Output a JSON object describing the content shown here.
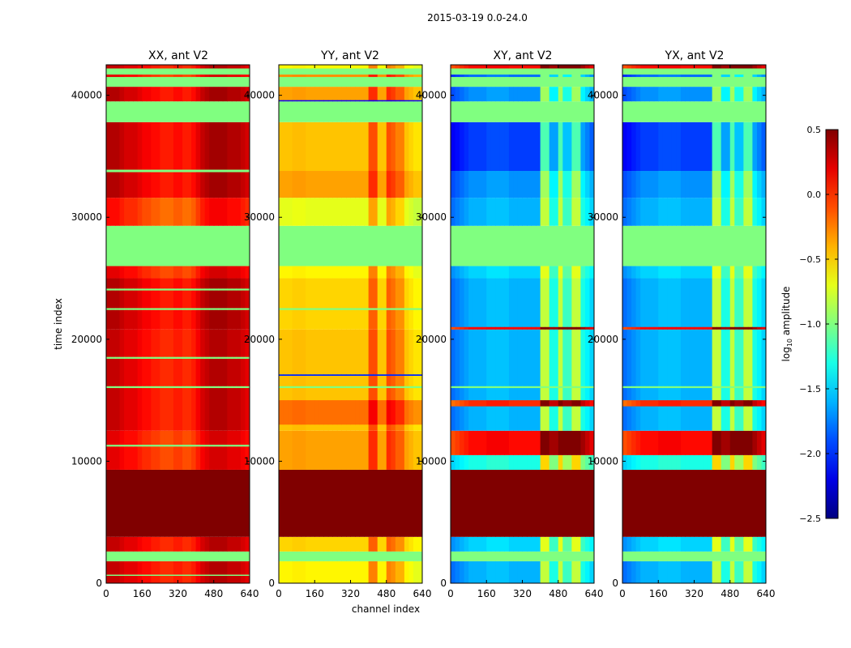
{
  "chart_data": {
    "type": "heatmap",
    "suptitle": "2015-03-19 0.0-24.0",
    "xlabel": "channel index",
    "ylabel": "time index",
    "xlim": [
      0,
      640
    ],
    "ylim": [
      0,
      42500
    ],
    "xticks": [
      0,
      160,
      320,
      480,
      640
    ],
    "yticks": [
      0,
      10000,
      20000,
      30000,
      40000
    ],
    "channels_per_column": 20,
    "colorbar": {
      "label_main": "log",
      "label_sub": "10",
      "label_rest": " amplitude",
      "colormap": "jet",
      "range": [
        -2.5,
        0.5
      ],
      "ticks": [
        "0.5",
        "0.0",
        "−0.5",
        "−1.0",
        "−1.5",
        "−2.0",
        "−2.5"
      ],
      "tick_values": [
        0.5,
        0.0,
        -0.5,
        -1.0,
        -1.5,
        -2.0,
        -2.5
      ]
    },
    "panels": [
      {
        "title": "XX, ant V2",
        "profile": [
          0.1,
          0.1,
          0.1,
          0.05,
          0,
          0,
          0,
          -0.05,
          -0.1,
          -0.1,
          -0.15,
          -0.15,
          -0.2,
          -0.2,
          -0.2,
          -0.15,
          -0.15,
          -0.2,
          -0.2,
          -0.15,
          -0.05,
          0.05,
          0.1,
          0.15,
          0.15,
          0.15,
          0.15,
          0.1,
          0.1,
          0.1,
          0.05,
          0
        ],
        "bands": [
          [
            0,
            1800,
            0.2
          ],
          [
            1800,
            2600,
            -1,
            1
          ],
          [
            2600,
            3800,
            0.2
          ],
          [
            3800,
            9300,
            0.5
          ],
          [
            9300,
            12500,
            0.1
          ],
          [
            12500,
            20800,
            0.2
          ],
          [
            20800,
            25000,
            0.25
          ],
          [
            25000,
            26000,
            0.1
          ],
          [
            26000,
            29300,
            -1,
            1
          ],
          [
            29300,
            31600,
            0.0
          ],
          [
            31600,
            33800,
            0.25
          ],
          [
            33800,
            37800,
            0.25
          ],
          [
            37800,
            39500,
            -1,
            1
          ],
          [
            39500,
            40700,
            0.25
          ],
          [
            40700,
            42500,
            -1,
            1
          ],
          [
            600,
            700,
            -1,
            1
          ],
          [
            11200,
            11350,
            -1,
            1
          ],
          [
            16000,
            16150,
            -1,
            1
          ],
          [
            18400,
            18550,
            -1,
            1
          ],
          [
            22400,
            22550,
            -1,
            1
          ],
          [
            24000,
            24150,
            -1,
            1
          ],
          [
            33700,
            33900,
            -1,
            1
          ],
          [
            41500,
            41700,
            0.1
          ],
          [
            42200,
            42500,
            0.2
          ]
        ]
      },
      {
        "title": "YY, ant V2",
        "profile": [
          0,
          0,
          0,
          0.02,
          0.02,
          0.02,
          0,
          0,
          0,
          0,
          0,
          0,
          0,
          0,
          0,
          0,
          0,
          0,
          0,
          0,
          0.35,
          0.35,
          0,
          0,
          0.35,
          0.3,
          0.2,
          0.2,
          0,
          -0.05,
          -0.1,
          -0.1
        ],
        "bands": [
          [
            0,
            1800,
            -0.6
          ],
          [
            1800,
            2600,
            -1,
            1
          ],
          [
            2600,
            3800,
            -0.5
          ],
          [
            3800,
            9300,
            0.5
          ],
          [
            9300,
            12500,
            -0.35
          ],
          [
            12500,
            20800,
            -0.45
          ],
          [
            13000,
            15000,
            -0.2
          ],
          [
            20800,
            25000,
            -0.5
          ],
          [
            25000,
            26000,
            -0.6
          ],
          [
            26000,
            29300,
            -1,
            1
          ],
          [
            29300,
            31600,
            -0.7
          ],
          [
            31600,
            33800,
            -0.35
          ],
          [
            33800,
            37800,
            -0.45
          ],
          [
            37800,
            39500,
            -1,
            1
          ],
          [
            39500,
            40700,
            -0.35
          ],
          [
            40700,
            42500,
            -1,
            1
          ],
          [
            17000,
            17120,
            -2.0,
            1
          ],
          [
            16000,
            16150,
            -1,
            1
          ],
          [
            22400,
            22550,
            -1,
            1
          ],
          [
            39500,
            39600,
            -2.1,
            1
          ],
          [
            41500,
            41700,
            -0.3
          ],
          [
            42200,
            42500,
            -0.6
          ]
        ]
      },
      {
        "title": "XY, ant V2",
        "profile": [
          -0.2,
          -0.15,
          -0.1,
          -0.05,
          0,
          0,
          0,
          0,
          0.05,
          0.05,
          0.05,
          0.05,
          0.05,
          0,
          0,
          0,
          0,
          0,
          0,
          0,
          0.8,
          0.8,
          0.3,
          0.3,
          0.8,
          0.4,
          0.4,
          0.8,
          0.8,
          0.3,
          0.2,
          0.1
        ],
        "bands": [
          [
            0,
            1800,
            -1.6
          ],
          [
            1800,
            2600,
            -1,
            1
          ],
          [
            2600,
            3800,
            -1.5
          ],
          [
            3800,
            9300,
            0.5
          ],
          [
            9300,
            10500,
            -1.3
          ],
          [
            10500,
            12500,
            0.1
          ],
          [
            12500,
            20800,
            -1.6
          ],
          [
            14500,
            15000,
            0.0
          ],
          [
            20800,
            25000,
            -1.6
          ],
          [
            25000,
            26000,
            -1.5
          ],
          [
            26000,
            29300,
            -1,
            1
          ],
          [
            29300,
            31600,
            -1.6
          ],
          [
            31600,
            33800,
            -1.7
          ],
          [
            33800,
            37800,
            -1.95
          ],
          [
            37800,
            39500,
            -1,
            1
          ],
          [
            39500,
            40700,
            -1.7
          ],
          [
            40700,
            42500,
            -1,
            1
          ],
          [
            16000,
            16150,
            -1,
            1
          ],
          [
            20800,
            21000,
            0.1
          ],
          [
            41500,
            41700,
            -1.8
          ],
          [
            42200,
            42500,
            0.1
          ]
        ]
      },
      {
        "title": "YX, ant V2",
        "profile": [
          -0.2,
          -0.15,
          -0.1,
          -0.05,
          0,
          0,
          0,
          0,
          0.05,
          0.05,
          0.05,
          0.05,
          0.05,
          0,
          0,
          0,
          0,
          0,
          0,
          0,
          0.8,
          0.8,
          0.3,
          0.3,
          0.8,
          0.4,
          0.4,
          0.8,
          0.8,
          0.3,
          0.2,
          0.1
        ],
        "bands": [
          [
            0,
            1800,
            -1.6
          ],
          [
            1800,
            2600,
            -1,
            1
          ],
          [
            2600,
            3800,
            -1.5
          ],
          [
            3800,
            9300,
            0.5
          ],
          [
            9300,
            10500,
            -1.3
          ],
          [
            10500,
            12500,
            0.1
          ],
          [
            12500,
            20800,
            -1.6
          ],
          [
            14500,
            15000,
            0.0
          ],
          [
            20800,
            25000,
            -1.6
          ],
          [
            25000,
            26000,
            -1.5
          ],
          [
            26000,
            29300,
            -1,
            1
          ],
          [
            29300,
            31600,
            -1.6
          ],
          [
            31600,
            33800,
            -1.7
          ],
          [
            33800,
            37800,
            -1.95
          ],
          [
            37800,
            39500,
            -1,
            1
          ],
          [
            39500,
            40700,
            -1.7
          ],
          [
            40700,
            42500,
            -1,
            1
          ],
          [
            16000,
            16150,
            -1,
            1
          ],
          [
            20800,
            21000,
            0.1
          ],
          [
            41500,
            41700,
            -1.8
          ],
          [
            42200,
            42500,
            0.1
          ]
        ]
      }
    ]
  }
}
